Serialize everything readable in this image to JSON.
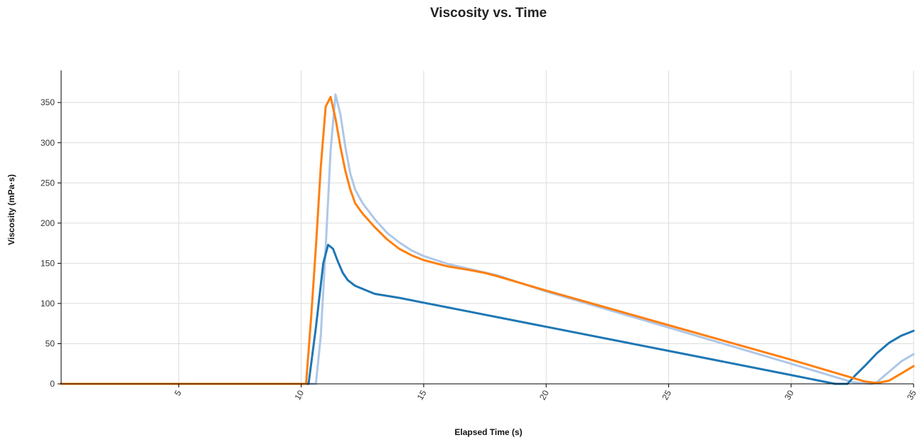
{
  "chart_data": {
    "type": "line",
    "title": "Viscosity vs. Time",
    "xlabel": "Elapsed Time (s)",
    "ylabel": "Viscosity (mPa·s)",
    "xlim": [
      0.2,
      35
    ],
    "ylim": [
      0,
      390
    ],
    "x_ticks": [
      5,
      10,
      15,
      20,
      25,
      30,
      35
    ],
    "y_ticks": [
      0,
      50,
      100,
      150,
      200,
      250,
      300,
      350
    ],
    "grid": true,
    "legend": "none",
    "series": [
      {
        "color": "#aec7e8",
        "points": [
          [
            0.2,
            0
          ],
          [
            10.5,
            0
          ],
          [
            10.6,
            0
          ],
          [
            10.8,
            60
          ],
          [
            11.0,
            170
          ],
          [
            11.2,
            290
          ],
          [
            11.4,
            360
          ],
          [
            11.6,
            335
          ],
          [
            11.8,
            295
          ],
          [
            12.0,
            262
          ],
          [
            12.2,
            242
          ],
          [
            12.5,
            225
          ],
          [
            13.0,
            205
          ],
          [
            13.5,
            188
          ],
          [
            14.0,
            176
          ],
          [
            14.5,
            166
          ],
          [
            15.0,
            159
          ],
          [
            16.0,
            149
          ],
          [
            17.0,
            142
          ],
          [
            18.0,
            135
          ],
          [
            20.0,
            115
          ],
          [
            25.0,
            70
          ],
          [
            30.0,
            25
          ],
          [
            32.5,
            2
          ],
          [
            33.3,
            0
          ],
          [
            33.5,
            2
          ],
          [
            34.0,
            15
          ],
          [
            34.5,
            28
          ],
          [
            35.0,
            37
          ]
        ]
      },
      {
        "color": "#1f77b4",
        "points": [
          [
            0.2,
            0
          ],
          [
            10.2,
            0
          ],
          [
            10.3,
            0
          ],
          [
            10.6,
            70
          ],
          [
            10.9,
            150
          ],
          [
            11.1,
            173
          ],
          [
            11.3,
            168
          ],
          [
            11.5,
            152
          ],
          [
            11.7,
            138
          ],
          [
            11.9,
            129
          ],
          [
            12.2,
            122
          ],
          [
            12.6,
            117
          ],
          [
            13.0,
            112
          ],
          [
            14.0,
            107
          ],
          [
            15.0,
            101
          ],
          [
            20.0,
            71
          ],
          [
            25.0,
            41
          ],
          [
            30.0,
            11
          ],
          [
            31.8,
            0
          ],
          [
            32.3,
            0
          ],
          [
            32.6,
            10
          ],
          [
            33.0,
            22
          ],
          [
            33.5,
            38
          ],
          [
            34.0,
            51
          ],
          [
            34.5,
            60
          ],
          [
            35.0,
            66
          ]
        ]
      },
      {
        "color": "#ff7f0e",
        "points": [
          [
            0.2,
            0
          ],
          [
            10.1,
            0
          ],
          [
            10.2,
            0
          ],
          [
            10.4,
            80
          ],
          [
            10.6,
            170
          ],
          [
            10.8,
            270
          ],
          [
            11.0,
            345
          ],
          [
            11.2,
            357
          ],
          [
            11.4,
            330
          ],
          [
            11.6,
            295
          ],
          [
            11.8,
            265
          ],
          [
            12.0,
            242
          ],
          [
            12.2,
            225
          ],
          [
            12.5,
            212
          ],
          [
            13.0,
            195
          ],
          [
            13.5,
            180
          ],
          [
            14.0,
            168
          ],
          [
            14.5,
            160
          ],
          [
            15.0,
            154
          ],
          [
            16.0,
            146
          ],
          [
            17.0,
            141
          ],
          [
            17.5,
            138
          ],
          [
            18.0,
            134
          ],
          [
            20.0,
            116
          ],
          [
            25.0,
            73
          ],
          [
            30.0,
            30
          ],
          [
            32.0,
            12
          ],
          [
            33.0,
            3
          ],
          [
            33.5,
            1
          ],
          [
            34.0,
            4
          ],
          [
            34.5,
            13
          ],
          [
            35.0,
            22
          ]
        ]
      }
    ]
  }
}
